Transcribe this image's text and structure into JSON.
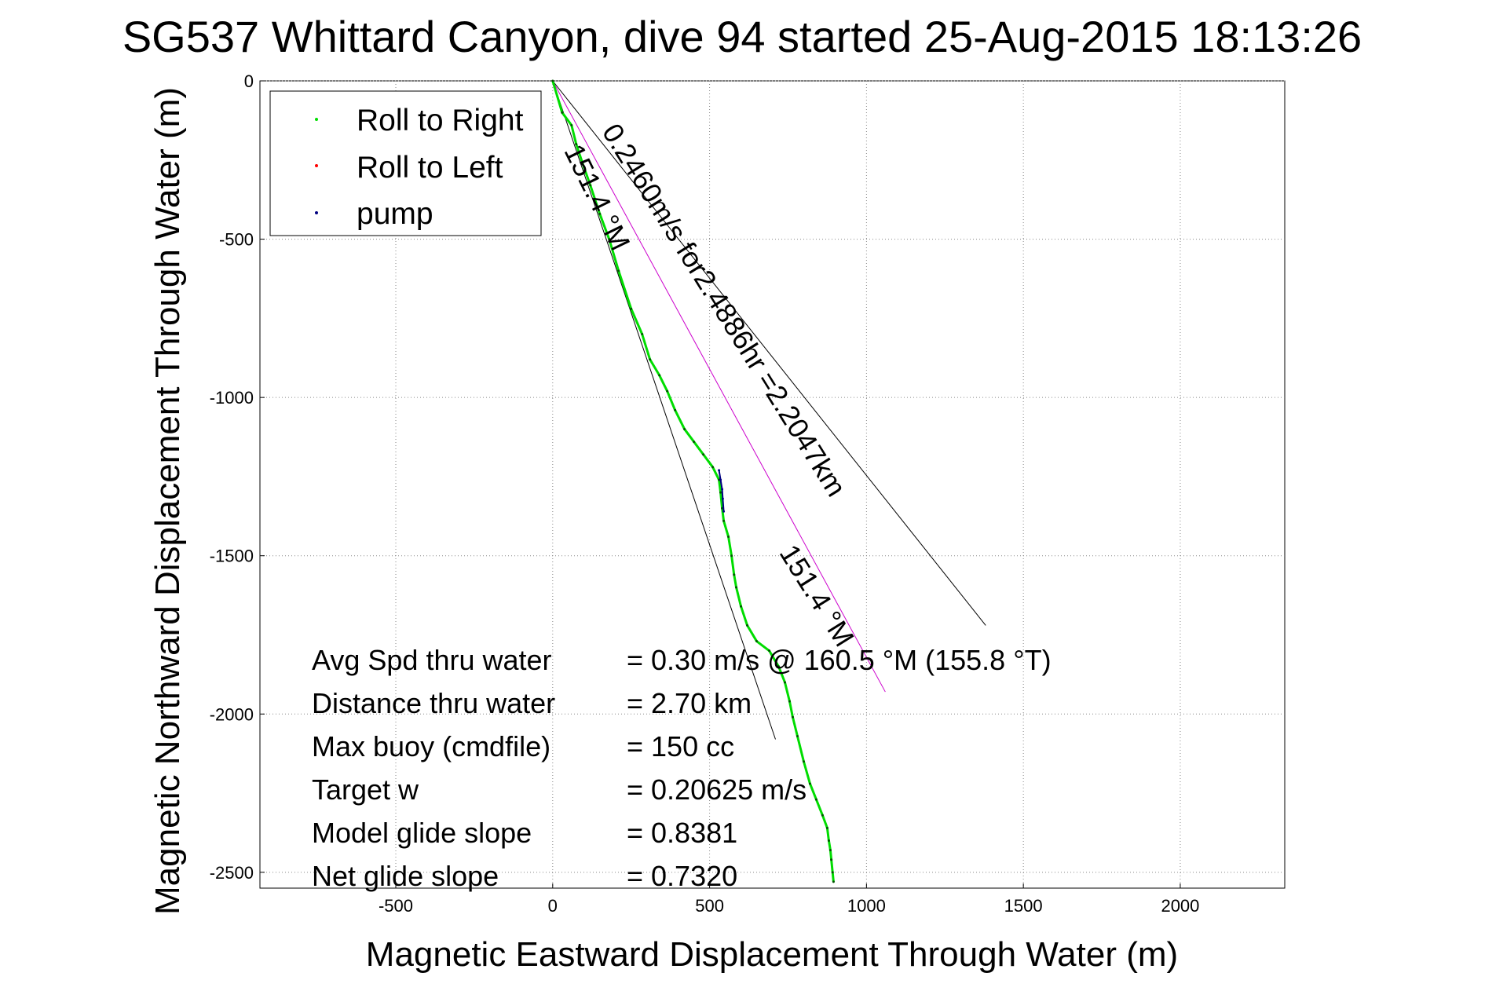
{
  "chart_data": {
    "type": "scatter",
    "title": "SG537 Whittard Canyon, dive 94 started 25-Aug-2015 18:13:26",
    "xlabel": "Magnetic Eastward Displacement Through Water (m)",
    "ylabel": "Magnetic Northward Displacement Through Water (m)",
    "xlim": [
      -933,
      2333
    ],
    "ylim": [
      -2550,
      0
    ],
    "xticks": [
      -500,
      0,
      500,
      1000,
      1500,
      2000
    ],
    "yticks": [
      0,
      -500,
      -1000,
      -1500,
      -2000,
      -2500
    ],
    "xtick_labels": [
      "-500",
      "0",
      "500",
      "1000",
      "1500",
      "2000"
    ],
    "ytick_labels": [
      "0",
      "-500",
      "-1000",
      "-1500",
      "-2000",
      "-2500"
    ],
    "grid": true,
    "legend_position": "top-left",
    "legend": [
      "Roll to Right",
      "Roll to Left",
      "pump"
    ],
    "series": [
      {
        "name": "Roll to Right",
        "color": "#00dd00",
        "x": [
          0,
          30,
          60,
          75,
          95,
          120,
          150,
          180,
          210,
          250,
          285,
          310,
          340,
          365,
          390,
          420,
          450,
          480,
          510,
          530,
          535,
          540,
          545,
          560,
          570,
          578,
          585,
          600,
          620,
          650,
          690,
          720,
          740,
          755,
          765,
          780,
          800,
          820,
          840,
          860,
          875,
          880,
          885,
          888,
          892,
          895
        ],
        "y": [
          0,
          -100,
          -140,
          -200,
          -260,
          -330,
          -420,
          -500,
          -600,
          -720,
          -800,
          -880,
          -930,
          -980,
          -1040,
          -1100,
          -1140,
          -1180,
          -1220,
          -1260,
          -1300,
          -1350,
          -1390,
          -1440,
          -1500,
          -1560,
          -1600,
          -1660,
          -1720,
          -1770,
          -1800,
          -1850,
          -1900,
          -1960,
          -2010,
          -2070,
          -2150,
          -2220,
          -2270,
          -2320,
          -2360,
          -2400,
          -2430,
          -2460,
          -2500,
          -2530
        ]
      },
      {
        "name": "Roll to Left",
        "color": "#ff0000",
        "x": [],
        "y": []
      },
      {
        "name": "pump",
        "color": "#000080",
        "x": [
          530,
          535,
          540,
          542,
          545
        ],
        "y": [
          -1230,
          -1260,
          -1290,
          -1320,
          -1360
        ]
      }
    ],
    "reference_lines": [
      {
        "name": "cone-left",
        "color": "#000000",
        "x": [
          0,
          710
        ],
        "y": [
          0,
          -2080
        ]
      },
      {
        "name": "cone-right",
        "color": "#000000",
        "x": [
          0,
          1380
        ],
        "y": [
          0,
          -1720
        ]
      },
      {
        "name": "mean-heading",
        "color": "#cc00cc",
        "x": [
          0,
          1060
        ],
        "y": [
          0,
          -1930
        ]
      }
    ],
    "annotations": [
      {
        "text": "0.2460m/s for2.4886hr =2.2047km",
        "x": 155,
        "y": -160,
        "angle": 58
      },
      {
        "text": "151.4 °M",
        "x": 35,
        "y": -220,
        "angle": 64
      },
      {
        "text": "151.4 °M",
        "x": 720,
        "y": -1490,
        "angle": 58
      }
    ],
    "stats": [
      {
        "label": "Avg Spd thru water",
        "value": "=  0.30 m/s @ 160.5 °M (155.8 °T)"
      },
      {
        "label": "Distance thru water",
        "value": "=  2.70 km"
      },
      {
        "label": "Max buoy (cmdfile)",
        "value": "= 150 cc"
      },
      {
        "label": "Target w",
        "value": "= 0.20625 m/s"
      },
      {
        "label": "Model glide slope",
        "value": "= 0.8381"
      },
      {
        "label": "Net glide slope",
        "value": "= 0.7320"
      }
    ]
  }
}
